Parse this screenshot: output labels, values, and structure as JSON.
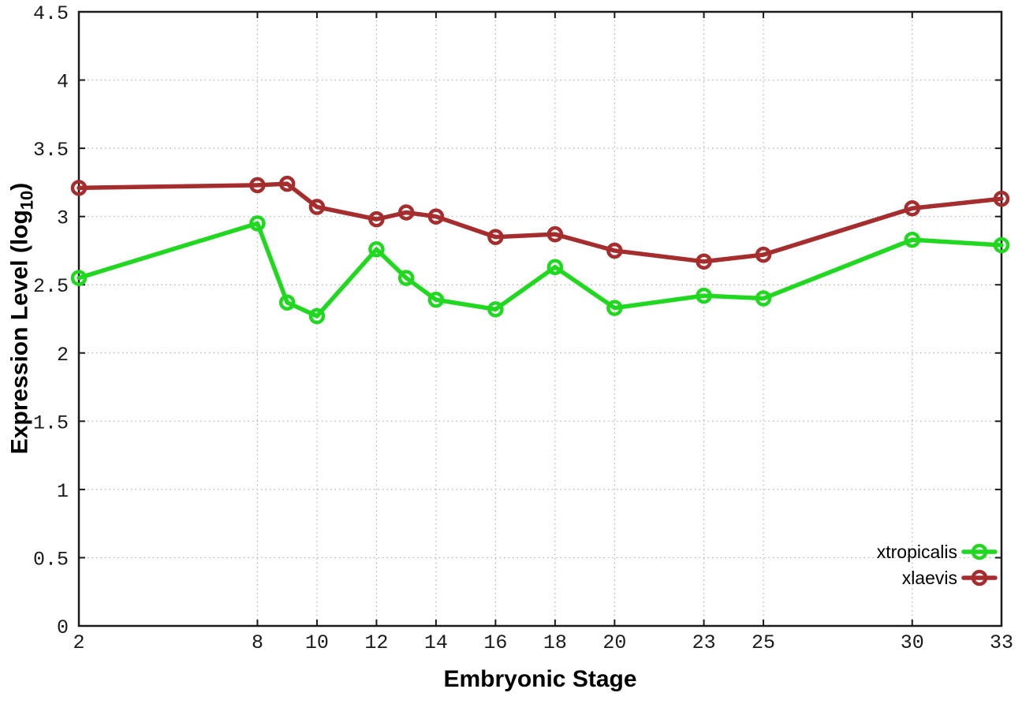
{
  "chart_data": {
    "type": "line",
    "title": "",
    "xlabel": "Embryonic Stage",
    "ylabel_prefix": "Expression Level (log",
    "ylabel_sub": "10",
    "ylabel_suffix": ")",
    "xlim": [
      2,
      33
    ],
    "ylim": [
      0,
      4.5
    ],
    "x_ticks": [
      2,
      8,
      10,
      12,
      14,
      16,
      18,
      20,
      23,
      25,
      30,
      33
    ],
    "y_ticks": [
      0,
      0.5,
      1,
      1.5,
      2,
      2.5,
      3,
      3.5,
      4,
      4.5
    ],
    "grid": true,
    "marker": "open-circle",
    "legend_position": "bottom-right",
    "x": [
      2,
      8,
      9,
      10,
      12,
      13,
      14,
      16,
      18,
      20,
      23,
      25,
      30,
      33
    ],
    "series": [
      {
        "name": "xtropicalis",
        "color": "#20d820",
        "values": [
          2.55,
          2.95,
          2.37,
          2.27,
          2.76,
          2.55,
          2.39,
          2.32,
          2.63,
          2.33,
          2.42,
          2.4,
          2.83,
          2.79
        ]
      },
      {
        "name": "xlaevis",
        "color": "#a52d2d",
        "values": [
          3.21,
          3.23,
          3.24,
          3.07,
          2.98,
          3.03,
          3.0,
          2.85,
          2.87,
          2.75,
          2.67,
          2.72,
          3.06,
          3.13
        ]
      }
    ]
  },
  "colors": {
    "background": "#ffffff",
    "axis": "#1a1a1a",
    "grid": "#b0b0b0",
    "tick_text": "#1a1a1a"
  }
}
